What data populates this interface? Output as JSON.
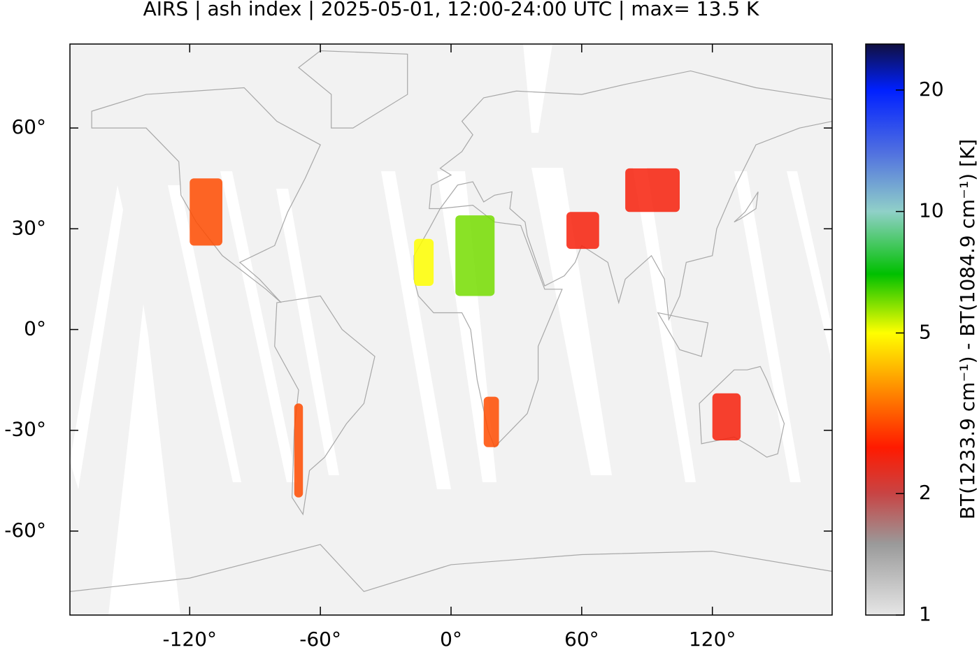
{
  "chart_data": {
    "type": "heatmap-map",
    "title": "AIRS | ash index | 2025-05-01, 12:00-24:00 UTC | max= 13.5 K",
    "colorbar_label": "BT(1233.9 cm⁻¹) - BT(1084.9 cm⁻¹) [K]",
    "xlim": [
      -175,
      175
    ],
    "ylim": [
      -85,
      85
    ],
    "xticks": [
      {
        "value": -120,
        "label": "-120°"
      },
      {
        "value": -60,
        "label": "-60°"
      },
      {
        "value": 0,
        "label": "0°"
      },
      {
        "value": 60,
        "label": "60°"
      },
      {
        "value": 120,
        "label": "120°"
      }
    ],
    "yticks": [
      {
        "value": 60,
        "label": "60°"
      },
      {
        "value": 30,
        "label": "30°"
      },
      {
        "value": 0,
        "label": "0°"
      },
      {
        "value": -30,
        "label": "-30°"
      },
      {
        "value": -60,
        "label": "-60°"
      }
    ],
    "clim": [
      1,
      26
    ],
    "cticks": [
      1,
      2,
      5,
      10,
      20
    ],
    "log_scale_colorbar": true,
    "colormap": [
      {
        "value": 1,
        "color": "#e6e6e6"
      },
      {
        "value": 1.5,
        "color": "#9a9a9a"
      },
      {
        "value": 2,
        "color": "#c84444"
      },
      {
        "value": 2.6,
        "color": "#ff1a00"
      },
      {
        "value": 3.5,
        "color": "#ff8000"
      },
      {
        "value": 5,
        "color": "#ffff00"
      },
      {
        "value": 7,
        "color": "#00c000"
      },
      {
        "value": 10,
        "color": "#90d0c8"
      },
      {
        "value": 14,
        "color": "#5070e0"
      },
      {
        "value": 20,
        "color": "#0020ff"
      },
      {
        "value": 26,
        "color": "#101040"
      }
    ],
    "regions": [
      {
        "lon": [
          -120,
          -105
        ],
        "lat": [
          25,
          45
        ],
        "value": 3
      },
      {
        "lon": [
          -17,
          -8
        ],
        "lat": [
          13,
          27
        ],
        "value": 5
      },
      {
        "lon": [
          2,
          20
        ],
        "lat": [
          10,
          34
        ],
        "value": 6
      },
      {
        "lon": [
          15,
          22
        ],
        "lat": [
          -35,
          -20
        ],
        "value": 3
      },
      {
        "lon": [
          -72,
          -68
        ],
        "lat": [
          -50,
          -22
        ],
        "value": 3
      },
      {
        "lon": [
          120,
          133
        ],
        "lat": [
          -33,
          -19
        ],
        "value": 2.5
      },
      {
        "lon": [
          53,
          68
        ],
        "lat": [
          24,
          35
        ],
        "value": 2.5
      },
      {
        "lon": [
          80,
          105
        ],
        "lat": [
          35,
          48
        ],
        "value": 2.5
      }
    ]
  }
}
